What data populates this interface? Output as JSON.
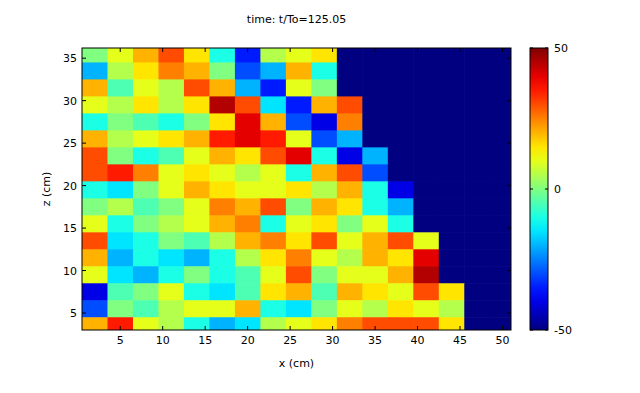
{
  "chart_data": {
    "type": "heatmap",
    "title": "time: t/To=125.05",
    "x_label": "x (cm)",
    "y_label": "z (cm)",
    "xlim": [
      0.5,
      51
    ],
    "ylim": [
      3,
      36.2
    ],
    "xticks": [
      5,
      10,
      15,
      20,
      25,
      30,
      35,
      40,
      45,
      50
    ],
    "yticks": [
      5,
      10,
      15,
      20,
      25,
      30,
      35
    ],
    "x": [
      2,
      5,
      8,
      11,
      14,
      17,
      20,
      23,
      26,
      29,
      32,
      35,
      38,
      41,
      44,
      47,
      50
    ],
    "y": [
      35.5,
      33.5,
      31.5,
      29.5,
      27.5,
      25.5,
      23.5,
      21.5,
      19.5,
      17.5,
      15.5,
      13.5,
      11.5,
      9.5,
      7.5,
      5.5,
      3.5
    ],
    "cells": [
      [
        0,
        10,
        20,
        30,
        15,
        -10,
        -35,
        5,
        10,
        15,
        -50,
        -50,
        -50,
        -50,
        -50,
        -50,
        -50
      ],
      [
        -20,
        5,
        15,
        25,
        20,
        0,
        -30,
        -20,
        20,
        -10,
        -50,
        -50,
        -50,
        -50,
        -50,
        -50,
        -50
      ],
      [
        20,
        -5,
        10,
        5,
        30,
        20,
        -20,
        -35,
        10,
        0,
        -50,
        -50,
        -50,
        -50,
        -50,
        -50,
        -50
      ],
      [
        10,
        5,
        15,
        5,
        15,
        45,
        30,
        -15,
        -35,
        20,
        30,
        -50,
        -50,
        -50,
        -50,
        -50,
        -50
      ],
      [
        -10,
        0,
        -5,
        -10,
        0,
        15,
        40,
        20,
        -30,
        -40,
        25,
        -50,
        -50,
        -50,
        -50,
        -50,
        -50
      ],
      [
        20,
        5,
        10,
        15,
        20,
        35,
        40,
        35,
        10,
        -30,
        -20,
        -50,
        -50,
        -50,
        -50,
        -50,
        -50
      ],
      [
        30,
        0,
        -10,
        -5,
        10,
        20,
        15,
        30,
        40,
        -10,
        -40,
        -20,
        -50,
        -50,
        -50,
        -50,
        -50
      ],
      [
        30,
        35,
        25,
        10,
        15,
        10,
        5,
        10,
        -10,
        20,
        30,
        -30,
        -50,
        -50,
        -50,
        -50,
        -50
      ],
      [
        -10,
        -15,
        0,
        10,
        20,
        15,
        10,
        10,
        15,
        5,
        20,
        -10,
        -40,
        -50,
        -50,
        -50,
        -50
      ],
      [
        0,
        5,
        -5,
        0,
        10,
        25,
        20,
        30,
        0,
        20,
        15,
        -10,
        -20,
        -50,
        -50,
        -50,
        -50
      ],
      [
        10,
        -10,
        0,
        5,
        10,
        20,
        25,
        -10,
        10,
        15,
        0,
        10,
        -10,
        -50,
        -50,
        -50,
        -50
      ],
      [
        30,
        -15,
        -10,
        0,
        -5,
        5,
        20,
        25,
        15,
        30,
        10,
        20,
        30,
        10,
        -50,
        -50,
        -50
      ],
      [
        20,
        -20,
        -10,
        -15,
        -20,
        -10,
        5,
        15,
        25,
        10,
        5,
        20,
        15,
        40,
        -50,
        -50,
        -50
      ],
      [
        10,
        -15,
        -20,
        -10,
        0,
        -10,
        -5,
        10,
        30,
        0,
        10,
        10,
        20,
        45,
        -50,
        -50,
        -50
      ],
      [
        -40,
        -5,
        0,
        10,
        -10,
        -15,
        -5,
        15,
        20,
        -5,
        20,
        15,
        10,
        30,
        15,
        -50,
        -50
      ],
      [
        -30,
        0,
        -5,
        5,
        10,
        10,
        20,
        -10,
        -15,
        0,
        10,
        5,
        15,
        10,
        5,
        -50,
        -50
      ],
      [
        20,
        35,
        10,
        5,
        -10,
        -20,
        -15,
        5,
        10,
        15,
        25,
        30,
        30,
        30,
        15,
        -50,
        -50
      ]
    ],
    "colorbar_range": [
      -50,
      50
    ],
    "colorbar_ticks": [
      -50,
      0,
      50
    ]
  }
}
